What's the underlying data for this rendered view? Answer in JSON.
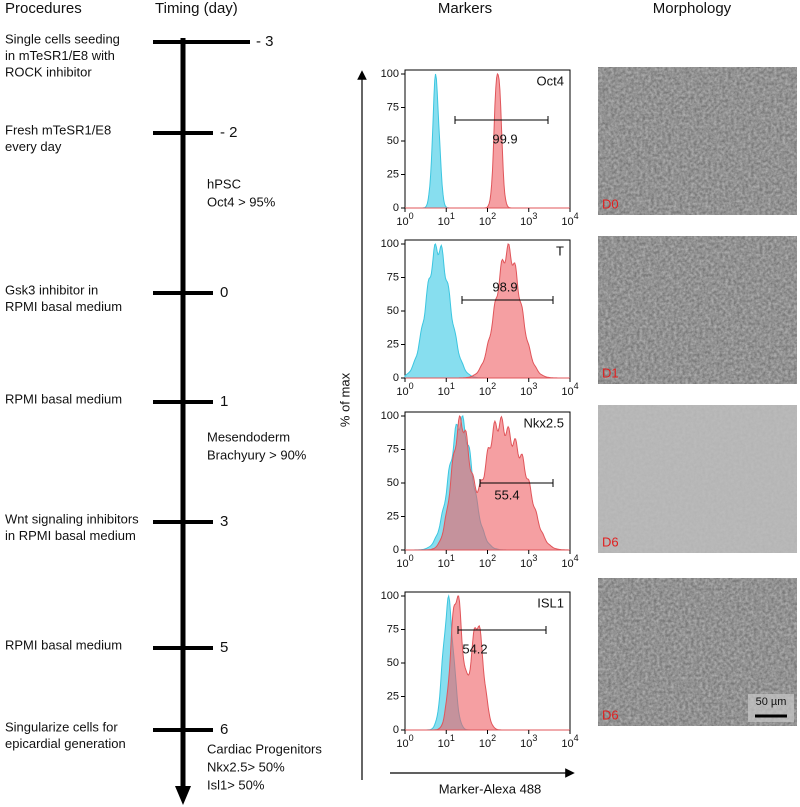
{
  "headers": {
    "procedures": "Procedures",
    "timing": "Timing (day)",
    "markers": "Markers",
    "morphology": "Morphology"
  },
  "timeline": [
    {
      "procedure": [
        "Single cells seeding",
        "in mTeSR1/E8  with",
        "ROCK inhibitor"
      ],
      "day": "- 3"
    },
    {
      "procedure": [
        "Fresh mTeSR1/E8",
        "every day"
      ],
      "day": "- 2"
    },
    {
      "procedure": [
        "Gsk3 inhibitor in",
        "RPMI basal medium"
      ],
      "day": "0"
    },
    {
      "procedure": [
        "RPMI basal medium"
      ],
      "day": "1"
    },
    {
      "procedure": [
        "Wnt signaling inhibitors",
        "in RPMI basal medium"
      ],
      "day": "3"
    },
    {
      "procedure": [
        "RPMI basal medium"
      ],
      "day": "5"
    },
    {
      "procedure": [
        "Singularize cells for",
        "epicardial generation"
      ],
      "day": "6"
    }
  ],
  "stages": [
    [
      "hPSC",
      "Oct4 > 95%"
    ],
    [
      "Mesendoderm",
      "Brachyury > 90%"
    ],
    [
      "Cardiac Progenitors",
      "Nkx2.5> 50%",
      "Isl1> 50%"
    ]
  ],
  "markers": {
    "y_axis_label": "% of max",
    "x_axis_label": "Marker-Alexa 488",
    "yticks": [
      "0",
      "25",
      "50",
      "75",
      "100"
    ],
    "xticks": [
      {
        "base": "10",
        "exp": "0"
      },
      {
        "base": "10",
        "exp": "1"
      },
      {
        "base": "10",
        "exp": "2"
      },
      {
        "base": "10",
        "exp": "3"
      },
      {
        "base": "10",
        "exp": "4"
      }
    ],
    "panels": [
      {
        "name": "Oct4",
        "gate": "99.9"
      },
      {
        "name": "T",
        "gate": "98.9"
      },
      {
        "name": "Nkx2.5",
        "gate": "55.4"
      },
      {
        "name": "ISL1",
        "gate": "54.2"
      }
    ]
  },
  "morphology": {
    "panels": [
      "D0",
      "D1",
      "D6",
      "D6"
    ],
    "scale_bar": "50 µm"
  }
}
